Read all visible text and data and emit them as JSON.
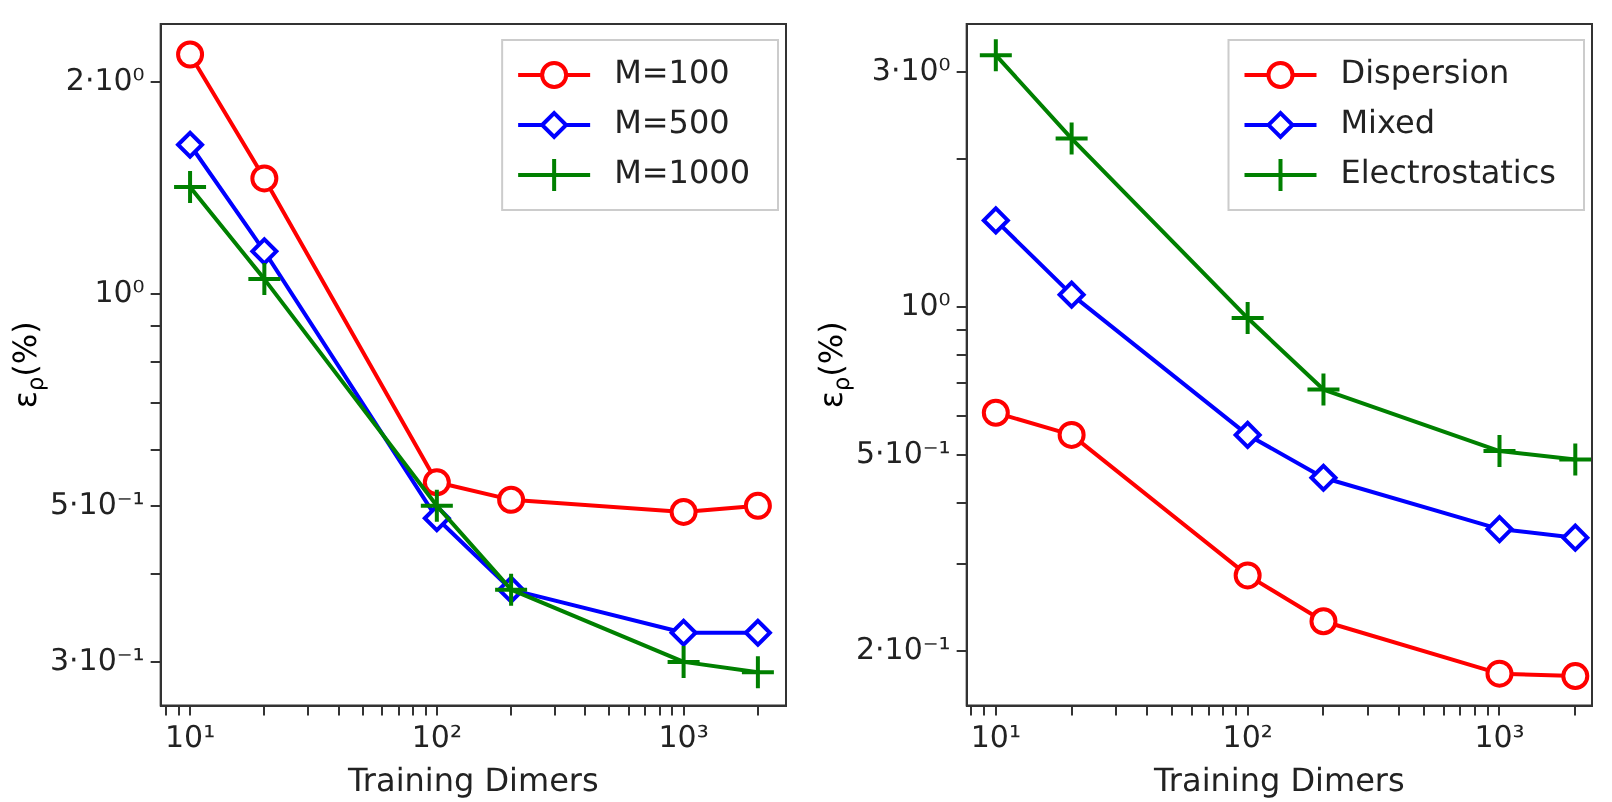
{
  "chart_data": [
    {
      "type": "line",
      "xlabel": "Training Dimers",
      "ylabel": "ε$_{ρ}$(%)",
      "log": "xy",
      "grid": false,
      "legend": "top right",
      "x": [
        10,
        20,
        100,
        200,
        1000,
        2000
      ],
      "xlim": [
        7.6,
        2600
      ],
      "xticks": [
        {
          "value": 8,
          "label": null
        },
        {
          "value": 9,
          "label": null
        },
        {
          "value": 10,
          "label": "10¹"
        },
        {
          "value": 20,
          "label": null
        },
        {
          "value": 30,
          "label": null
        },
        {
          "value": 40,
          "label": null
        },
        {
          "value": 50,
          "label": null
        },
        {
          "value": 60,
          "label": null
        },
        {
          "value": 70,
          "label": null
        },
        {
          "value": 80,
          "label": null
        },
        {
          "value": 90,
          "label": null
        },
        {
          "value": 100,
          "label": "10²"
        },
        {
          "value": 200,
          "label": null
        },
        {
          "value": 300,
          "label": null
        },
        {
          "value": 400,
          "label": null
        },
        {
          "value": 500,
          "label": null
        },
        {
          "value": 600,
          "label": null
        },
        {
          "value": 700,
          "label": null
        },
        {
          "value": 800,
          "label": null
        },
        {
          "value": 900,
          "label": null
        },
        {
          "value": 1000,
          "label": "10³"
        },
        {
          "value": 2000,
          "label": null
        }
      ],
      "ylim": [
        0.26,
        2.42
      ],
      "yticks": [
        {
          "value": 0.3,
          "label": "3·10⁻¹"
        },
        {
          "value": 0.4,
          "label": null
        },
        {
          "value": 0.5,
          "label": "5·10⁻¹"
        },
        {
          "value": 0.6,
          "label": null
        },
        {
          "value": 0.7,
          "label": null
        },
        {
          "value": 0.8,
          "label": null
        },
        {
          "value": 0.9,
          "label": null
        },
        {
          "value": 1,
          "label": "10⁰"
        },
        {
          "value": 2,
          "label": "2·10⁰"
        }
      ],
      "series": [
        {
          "name": "M=100",
          "color": "#ff0000",
          "marker": "circle",
          "values": [
            2.19,
            1.46,
            0.54,
            0.51,
            0.49,
            0.5
          ]
        },
        {
          "name": "M=500",
          "color": "#0000ff",
          "marker": "diamond",
          "values": [
            1.63,
            1.15,
            0.48,
            0.38,
            0.33,
            0.33
          ]
        },
        {
          "name": "M=1000",
          "color": "#008000",
          "marker": "cross",
          "values": [
            1.42,
            1.05,
            0.5,
            0.38,
            0.3,
            0.29
          ]
        }
      ]
    },
    {
      "type": "line",
      "xlabel": "Training Dimers",
      "ylabel": "ε$_{ρ}$(%)",
      "log": "xy",
      "grid": false,
      "legend": "top right",
      "x": [
        10,
        20,
        100,
        200,
        1000,
        2000
      ],
      "xlim": [
        7.66,
        2330
      ],
      "xticks": [
        {
          "value": 8,
          "label": null
        },
        {
          "value": 9,
          "label": null
        },
        {
          "value": 10,
          "label": "10¹"
        },
        {
          "value": 20,
          "label": null
        },
        {
          "value": 30,
          "label": null
        },
        {
          "value": 40,
          "label": null
        },
        {
          "value": 50,
          "label": null
        },
        {
          "value": 60,
          "label": null
        },
        {
          "value": 70,
          "label": null
        },
        {
          "value": 80,
          "label": null
        },
        {
          "value": 90,
          "label": null
        },
        {
          "value": 100,
          "label": "10²"
        },
        {
          "value": 200,
          "label": null
        },
        {
          "value": 300,
          "label": null
        },
        {
          "value": 400,
          "label": null
        },
        {
          "value": 500,
          "label": null
        },
        {
          "value": 600,
          "label": null
        },
        {
          "value": 700,
          "label": null
        },
        {
          "value": 800,
          "label": null
        },
        {
          "value": 900,
          "label": null
        },
        {
          "value": 1000,
          "label": "10³"
        },
        {
          "value": 2000,
          "label": null
        }
      ],
      "ylim": [
        0.155,
        3.76
      ],
      "yticks": [
        {
          "value": 0.2,
          "label": "2·10⁻¹"
        },
        {
          "value": 0.3,
          "label": null
        },
        {
          "value": 0.4,
          "label": null
        },
        {
          "value": 0.5,
          "label": "5·10⁻¹"
        },
        {
          "value": 0.6,
          "label": null
        },
        {
          "value": 0.7,
          "label": null
        },
        {
          "value": 0.8,
          "label": null
        },
        {
          "value": 0.9,
          "label": null
        },
        {
          "value": 1,
          "label": "10⁰"
        },
        {
          "value": 2,
          "label": null
        },
        {
          "value": 3,
          "label": "3·10⁰"
        }
      ],
      "series": [
        {
          "name": "Dispersion",
          "color": "#ff0000",
          "marker": "circle",
          "values": [
            0.61,
            0.55,
            0.285,
            0.23,
            0.18,
            0.178
          ]
        },
        {
          "name": "Mixed",
          "color": "#0000ff",
          "marker": "diamond",
          "values": [
            1.5,
            1.06,
            0.55,
            0.45,
            0.354,
            0.34
          ]
        },
        {
          "name": "Electrostatics",
          "color": "#008000",
          "marker": "cross",
          "values": [
            3.25,
            2.2,
            0.95,
            0.68,
            0.51,
            0.49
          ]
        }
      ]
    }
  ]
}
